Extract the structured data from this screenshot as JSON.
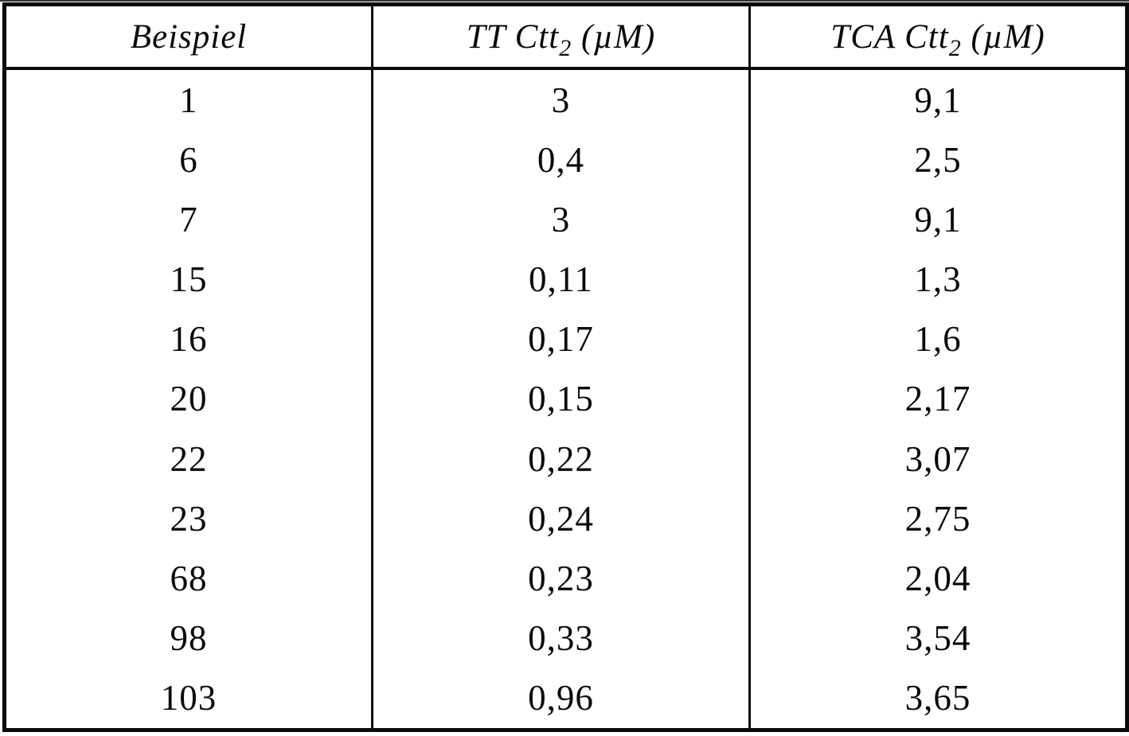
{
  "document": {
    "kind": "scanned patent table",
    "language": "de",
    "ink_color": "#0b0b0b",
    "paper_color": "#ffffff"
  },
  "table": {
    "headers": [
      {
        "pre": "Beispiel",
        "sub": "",
        "post": ""
      },
      {
        "pre": "TT Ctt",
        "sub": "2",
        "post": " (µM)"
      },
      {
        "pre": "TCA Ctt",
        "sub": "2",
        "post": " (µM)"
      }
    ],
    "rows": [
      [
        "1",
        "3",
        "9,1"
      ],
      [
        "6",
        "0,4",
        "2,5"
      ],
      [
        "7",
        "3",
        "9,1"
      ],
      [
        "15",
        "0,11",
        "1,3"
      ],
      [
        "16",
        "0,17",
        "1,6"
      ],
      [
        "20",
        "0,15",
        "2,17"
      ],
      [
        "22",
        "0,22",
        "3,07"
      ],
      [
        "23",
        "0,24",
        "2,75"
      ],
      [
        "68",
        "0,23",
        "2,04"
      ],
      [
        "98",
        "0,33",
        "3,54"
      ],
      [
        "103",
        "0,96",
        "3,65"
      ]
    ]
  },
  "chart_data": {
    "type": "table",
    "title": "",
    "columns": [
      "Beispiel",
      "TT Ctt2 (µM)",
      "TCA Ctt2 (µM)"
    ],
    "rows": [
      [
        "1",
        "3",
        "9,1"
      ],
      [
        "6",
        "0,4",
        "2,5"
      ],
      [
        "7",
        "3",
        "9,1"
      ],
      [
        "15",
        "0,11",
        "1,3"
      ],
      [
        "16",
        "0,17",
        "1,6"
      ],
      [
        "20",
        "0,15",
        "2,17"
      ],
      [
        "22",
        "0,22",
        "3,07"
      ],
      [
        "23",
        "0,24",
        "2,75"
      ],
      [
        "68",
        "0,23",
        "2,04"
      ],
      [
        "98",
        "0,33",
        "3,54"
      ],
      [
        "103",
        "0,96",
        "3,65"
      ]
    ]
  }
}
